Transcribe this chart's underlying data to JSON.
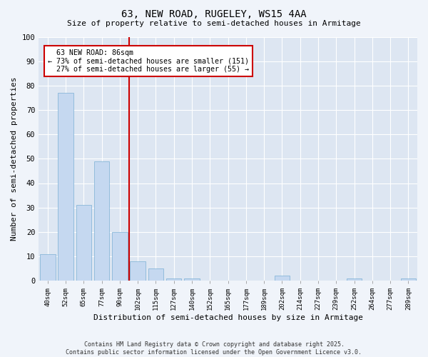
{
  "title1": "63, NEW ROAD, RUGELEY, WS15 4AA",
  "title2": "Size of property relative to semi-detached houses in Armitage",
  "xlabel": "Distribution of semi-detached houses by size in Armitage",
  "ylabel": "Number of semi-detached properties",
  "categories": [
    "40sqm",
    "52sqm",
    "65sqm",
    "77sqm",
    "90sqm",
    "102sqm",
    "115sqm",
    "127sqm",
    "140sqm",
    "152sqm",
    "165sqm",
    "177sqm",
    "189sqm",
    "202sqm",
    "214sqm",
    "227sqm",
    "239sqm",
    "252sqm",
    "264sqm",
    "277sqm",
    "289sqm"
  ],
  "values": [
    11,
    77,
    31,
    49,
    20,
    8,
    5,
    1,
    1,
    0,
    0,
    0,
    0,
    2,
    0,
    0,
    0,
    1,
    0,
    0,
    1
  ],
  "bar_color": "#c5d8f0",
  "bar_edgecolor": "#7aafd4",
  "property_label": "63 NEW ROAD: 86sqm",
  "pct_smaller": 73,
  "pct_larger": 27,
  "count_smaller": 151,
  "count_larger": 55,
  "vline_x": 4.5,
  "annotation_box_color": "#cc0000",
  "ylim": [
    0,
    100
  ],
  "yticks": [
    0,
    10,
    20,
    30,
    40,
    50,
    60,
    70,
    80,
    90,
    100
  ],
  "fig_facecolor": "#f0f4fa",
  "plot_facecolor": "#dde6f2",
  "grid_color": "#ffffff",
  "footer": "Contains HM Land Registry data © Crown copyright and database right 2025.\nContains public sector information licensed under the Open Government Licence v3.0.",
  "title1_fontsize": 10,
  "title2_fontsize": 8,
  "ylabel_fontsize": 8,
  "xlabel_fontsize": 8
}
